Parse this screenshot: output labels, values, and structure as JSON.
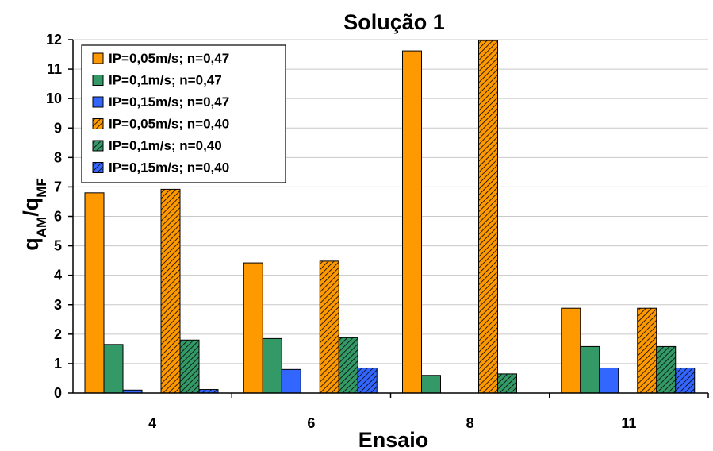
{
  "chart_data": {
    "type": "bar",
    "title": "Solução 1",
    "xlabel": "Ensaio",
    "ylabel": {
      "main": "q",
      "sub1": "AM",
      "sep": "/q",
      "sub2": "MF"
    },
    "categories": [
      "4",
      "6",
      "8",
      "11"
    ],
    "ylim": [
      0,
      12
    ],
    "yticks": [
      0,
      1,
      2,
      3,
      4,
      5,
      6,
      7,
      8,
      9,
      10,
      11,
      12
    ],
    "grid": true,
    "legend_position": "top-left",
    "series": [
      {
        "name": "IP=0,05m/s; n=0,47",
        "color": "#FF9900",
        "hatched": false,
        "values": [
          6.8,
          4.42,
          11.62,
          2.88
        ]
      },
      {
        "name": "IP=0,1m/s; n=0,47",
        "color": "#339966",
        "hatched": false,
        "values": [
          1.65,
          1.85,
          0.6,
          1.58
        ]
      },
      {
        "name": "IP=0,15m/s; n=0,47",
        "color": "#3366FF",
        "hatched": false,
        "values": [
          0.1,
          0.8,
          0,
          0.85
        ]
      },
      {
        "name": "IP=0,05m/s; n=0,40",
        "color": "#FF9900",
        "hatched": true,
        "values": [
          6.92,
          4.48,
          11.97,
          2.88
        ]
      },
      {
        "name": "IP=0,1m/s; n=0,40",
        "color": "#339966",
        "hatched": true,
        "values": [
          1.8,
          1.88,
          0.65,
          1.58
        ]
      },
      {
        "name": "IP=0,15m/s; n=0,40",
        "color": "#3366FF",
        "hatched": true,
        "values": [
          0.12,
          0.85,
          0,
          0.85
        ]
      }
    ]
  }
}
